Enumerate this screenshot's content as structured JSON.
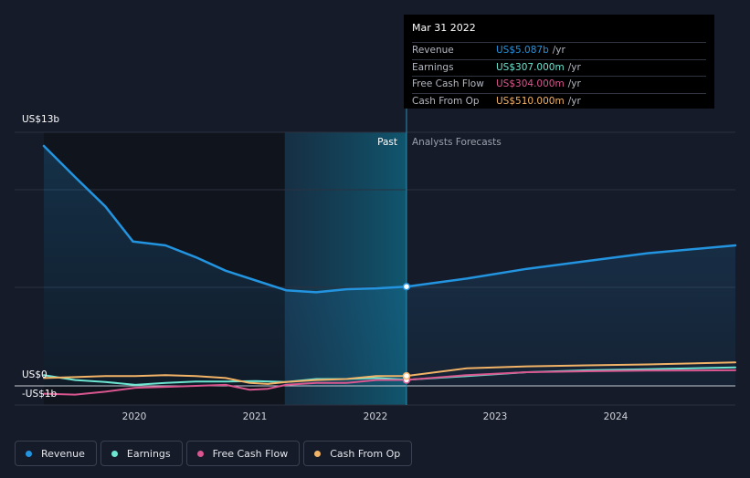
{
  "tooltip": {
    "date": "Mar 31 2022",
    "rows": [
      {
        "label": "Revenue",
        "value": "US$5.087b",
        "unit": "/yr",
        "color": "#2394df"
      },
      {
        "label": "Earnings",
        "value": "US$307.000m",
        "unit": "/yr",
        "color": "#6ce5d1"
      },
      {
        "label": "Free Cash Flow",
        "value": "US$304.000m",
        "unit": "/yr",
        "color": "#d9568f"
      },
      {
        "label": "Cash From Op",
        "value": "US$510.000m",
        "unit": "/yr",
        "color": "#f2b367"
      }
    ]
  },
  "labels": {
    "past": "Past",
    "forecast": "Analysts Forecasts"
  },
  "legend": [
    {
      "label": "Revenue",
      "color": "#2394df"
    },
    {
      "label": "Earnings",
      "color": "#6ce5d1"
    },
    {
      "label": "Free Cash Flow",
      "color": "#d9568f"
    },
    {
      "label": "Cash From Op",
      "color": "#f2b367"
    }
  ],
  "chart_data": {
    "type": "line",
    "y_unit": "US$ billions",
    "ylim": [
      -1,
      13
    ],
    "y_tick_labels": [
      "US$13b",
      "US$0",
      "-US$1b"
    ],
    "x_tick_labels": [
      "2020",
      "2021",
      "2022",
      "2023",
      "2024"
    ],
    "xlim": [
      2019.24,
      2024.98
    ],
    "past_start": 2021.24,
    "forecast_start": 2022.25,
    "highlight_x": 2022.25,
    "series": [
      {
        "name": "Revenue",
        "color": "#2394df",
        "x": [
          2019.24,
          2019.5,
          2019.75,
          2019.98,
          2020.25,
          2020.5,
          2020.75,
          2021.0,
          2021.25,
          2021.5,
          2021.75,
          2022.0,
          2022.25,
          2022.75,
          2023.25,
          2023.75,
          2024.25,
          2024.98
        ],
        "y": [
          12.3,
          10.7,
          9.2,
          7.4,
          7.2,
          6.6,
          5.9,
          5.4,
          4.9,
          4.8,
          4.95,
          5.0,
          5.087,
          5.5,
          6.0,
          6.4,
          6.8,
          7.2
        ]
      },
      {
        "name": "Earnings",
        "color": "#6ce5d1",
        "x": [
          2019.24,
          2019.5,
          2019.75,
          2020.0,
          2020.25,
          2020.5,
          2020.75,
          2021.0,
          2021.25,
          2021.5,
          2021.75,
          2022.0,
          2022.25,
          2022.75,
          2023.25,
          2023.75,
          2024.25,
          2024.98
        ],
        "y": [
          0.55,
          0.3,
          0.2,
          0.05,
          0.15,
          0.22,
          0.22,
          0.25,
          0.2,
          0.35,
          0.35,
          0.4,
          0.307,
          0.5,
          0.7,
          0.8,
          0.85,
          0.95
        ]
      },
      {
        "name": "Free Cash Flow",
        "color": "#d9568f",
        "x": [
          2019.24,
          2019.5,
          2019.75,
          2020.0,
          2020.25,
          2020.5,
          2020.75,
          2020.95,
          2021.1,
          2021.25,
          2021.5,
          2021.75,
          2022.0,
          2022.25,
          2022.75,
          2023.25,
          2023.75,
          2024.25,
          2024.98
        ],
        "y": [
          -0.4,
          -0.45,
          -0.3,
          -0.1,
          -0.05,
          0.0,
          0.05,
          -0.2,
          -0.15,
          0.05,
          0.15,
          0.15,
          0.3,
          0.304,
          0.55,
          0.7,
          0.75,
          0.78,
          0.8
        ]
      },
      {
        "name": "Cash From Op",
        "color": "#f2b367",
        "x": [
          2019.24,
          2019.5,
          2019.75,
          2020.0,
          2020.25,
          2020.5,
          2020.75,
          2020.95,
          2021.1,
          2021.25,
          2021.5,
          2021.75,
          2022.0,
          2022.25,
          2022.75,
          2023.25,
          2023.75,
          2024.25,
          2024.98
        ],
        "y": [
          0.4,
          0.45,
          0.5,
          0.5,
          0.55,
          0.5,
          0.4,
          0.15,
          0.1,
          0.2,
          0.3,
          0.35,
          0.5,
          0.51,
          0.9,
          1.0,
          1.05,
          1.1,
          1.2
        ]
      }
    ]
  }
}
